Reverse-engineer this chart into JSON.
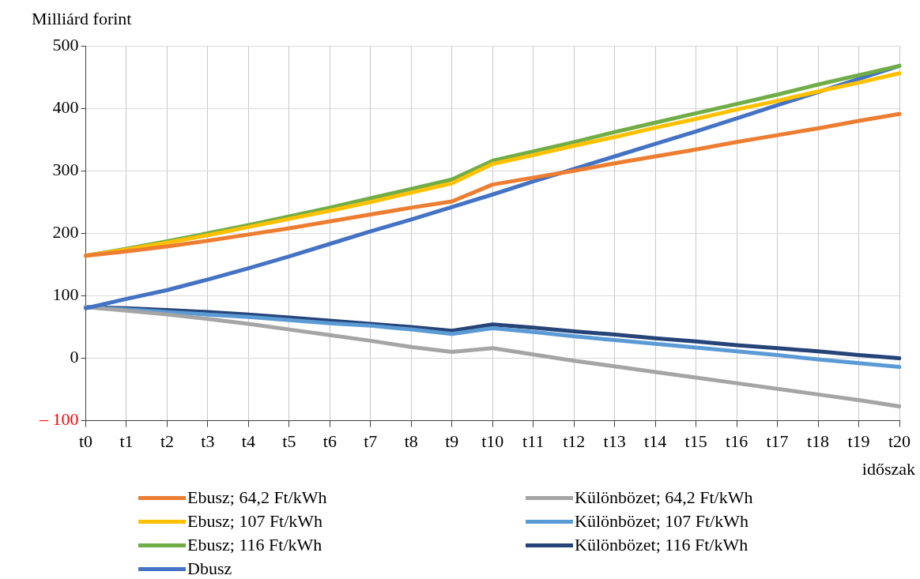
{
  "chart_data": {
    "type": "line",
    "ylabel": "Milliárd forint",
    "xlabel": "időszak",
    "categories": [
      "t0",
      "t1",
      "t2",
      "t3",
      "t4",
      "t5",
      "t6",
      "t7",
      "t8",
      "t9",
      "t10",
      "t11",
      "t12",
      "t13",
      "t14",
      "t15",
      "t16",
      "t17",
      "t18",
      "t19",
      "t20"
    ],
    "ylim": [
      -100,
      500
    ],
    "yticks": [
      {
        "value": -100,
        "label": "– 100"
      },
      0,
      100,
      200,
      300,
      400,
      500
    ],
    "grid": true,
    "legend": "bottom",
    "marker": "none",
    "line_style": "solid",
    "series": [
      {
        "name": "Ebusz; 64,2 Ft/kWh",
        "color": "#ed7d31",
        "values": [
          164,
          171,
          179,
          188,
          198,
          208,
          219,
          230,
          241,
          251,
          278,
          289,
          300,
          312,
          323,
          334,
          346,
          357,
          368,
          380,
          391
        ]
      },
      {
        "name": "Ebusz; 107 Ft/kWh",
        "color": "#ffc000",
        "values": [
          164,
          174,
          185,
          197,
          210,
          223,
          236,
          250,
          265,
          280,
          311,
          325,
          340,
          354,
          369,
          383,
          398,
          412,
          427,
          441,
          456
        ]
      },
      {
        "name": "Ebusz; 116 Ft/kWh",
        "color": "#70ad47",
        "values": [
          164,
          175,
          187,
          200,
          213,
          227,
          241,
          256,
          271,
          286,
          316,
          331,
          346,
          362,
          377,
          392,
          407,
          422,
          438,
          453,
          468
        ]
      },
      {
        "name": "Dbusz",
        "color": "#4472c4",
        "values": [
          80,
          95,
          109,
          126,
          144,
          163,
          183,
          203,
          222,
          242,
          262,
          283,
          303,
          323,
          343,
          363,
          384,
          405,
          426,
          447,
          468
        ]
      },
      {
        "name": "Különbözet; 64,2 Ft/kWh",
        "color": "#a5a5a5",
        "values": [
          82,
          76,
          70,
          63,
          55,
          46,
          37,
          28,
          18,
          10,
          16,
          6,
          -4,
          -13,
          -22,
          -31,
          -40,
          -49,
          -58,
          -67,
          -77
        ]
      },
      {
        "name": "Különbözet; 107 Ft/kWh",
        "color": "#5b9bd5",
        "values": [
          82,
          78,
          74,
          70,
          66,
          61,
          56,
          52,
          46,
          39,
          48,
          42,
          35,
          29,
          23,
          17,
          11,
          5,
          -2,
          -8,
          -14
        ]
      },
      {
        "name": "Különbözet; 116 Ft/kWh",
        "color": "#264478",
        "values": [
          82,
          80,
          77,
          74,
          70,
          65,
          60,
          55,
          50,
          44,
          54,
          49,
          43,
          38,
          32,
          27,
          21,
          16,
          11,
          5,
          0
        ]
      }
    ]
  }
}
